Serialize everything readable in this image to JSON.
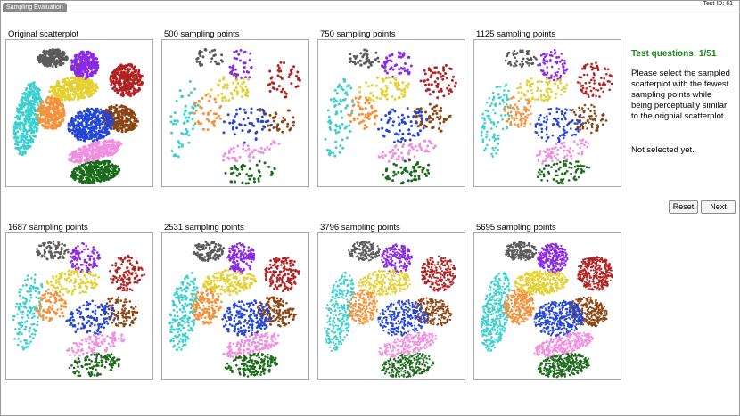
{
  "window": {
    "tab_label": "Sampling Evaluation",
    "test_id": "Test ID: 61"
  },
  "panels": [
    {
      "title": "Original scatterplot",
      "points": 9000,
      "sampled": false
    },
    {
      "title": "500 sampling points",
      "points": 500,
      "sampled": true
    },
    {
      "title": "750 sampling points",
      "points": 750,
      "sampled": true
    },
    {
      "title": "1125 sampling points",
      "points": 1125,
      "sampled": true
    },
    {
      "title": "1687 sampling points",
      "points": 1687,
      "sampled": true
    },
    {
      "title": "2531 sampling points",
      "points": 2531,
      "sampled": true
    },
    {
      "title": "3796 sampling points",
      "points": 3796,
      "sampled": true
    },
    {
      "title": "5695 sampling points",
      "points": 5695,
      "sampled": true
    }
  ],
  "question": {
    "title": "Test questions: 1/51",
    "text": "Please select the sampled scatterplot with the fewest sampling points while being perceptually similar to the orignial scatterplot.",
    "status": "Not selected yet."
  },
  "buttons": {
    "reset": "Reset",
    "next": "Next"
  },
  "cluster_colors": [
    "#5a5a5a",
    "#8b2be2",
    "#b22222",
    "#e4d030",
    "#3ad0d0",
    "#f5913a",
    "#8b4513",
    "#2446d6",
    "#f08ee0",
    "#1a6b1a"
  ]
}
